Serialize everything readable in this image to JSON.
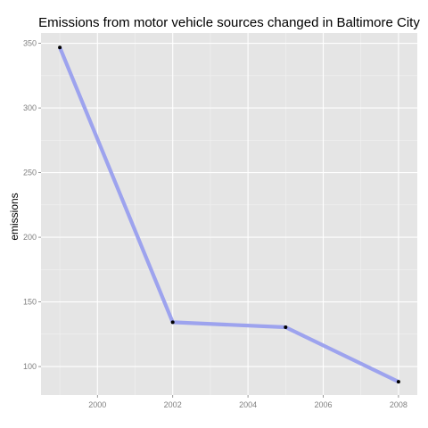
{
  "chart_data": {
    "type": "line",
    "title": "Emissions from motor vehicle sources changed in Baltimore City",
    "xlabel": "",
    "ylabel": "emissions",
    "x": [
      1999,
      2002,
      2005,
      2008
    ],
    "series": [
      {
        "values": [
          346.8,
          134.3,
          130.4,
          88.3
        ]
      }
    ],
    "xlim": [
      1998.5,
      2008.5
    ],
    "ylim": [
      78,
      358
    ],
    "xticks": [
      2000,
      2002,
      2004,
      2006,
      2008
    ],
    "yticks": [
      100,
      150,
      200,
      250,
      300,
      350
    ],
    "grid": true,
    "legend": "none",
    "colors": {
      "panel": "#e5e5e5",
      "grid_major": "#ffffff",
      "grid_minor": "#f2f2f2",
      "line": "#9da3ee",
      "point": "#000000",
      "tick_text": "#7f7f7f"
    }
  }
}
